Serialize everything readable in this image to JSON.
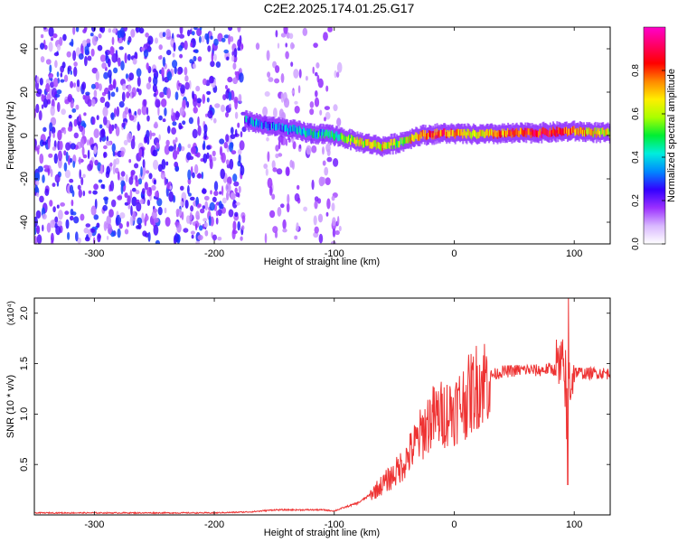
{
  "figure": {
    "title": "C2E2.2025.174.01.25.G17"
  },
  "chart_data": [
    {
      "type": "heatmap",
      "xlabel": "Height of straight line (km)",
      "ylabel": "Frequency (Hz)",
      "xlim": [
        -350,
        130
      ],
      "ylim": [
        -50,
        50
      ],
      "xticks": [
        -300,
        -200,
        -100,
        0,
        100
      ],
      "yticks": [
        -40,
        -20,
        0,
        20,
        40
      ],
      "colorbar": {
        "label": "Normalized spectral amplitude",
        "range": [
          0.0,
          1.0
        ],
        "ticks": [
          0.0,
          0.2,
          0.4,
          0.6,
          0.8
        ],
        "tick_labels": [
          "0.0",
          "0.2",
          "0.4",
          "0.6",
          "0.8"
        ],
        "colors": [
          "#ffffff",
          "#d9b8ff",
          "#9b30ff",
          "#3300ff",
          "#0088ff",
          "#00eedd",
          "#00ee33",
          "#aaff00",
          "#ffee00",
          "#ff8800",
          "#ff0000",
          "#ff0066",
          "#ff00cc"
        ]
      },
      "signal_track": [
        {
          "x": -175,
          "freq": 7,
          "amp": 0.35
        },
        {
          "x": -160,
          "freq": 5,
          "amp": 0.3
        },
        {
          "x": -140,
          "freq": 3,
          "amp": 0.35
        },
        {
          "x": -120,
          "freq": 1,
          "amp": 0.4
        },
        {
          "x": -100,
          "freq": 0,
          "amp": 0.45
        },
        {
          "x": -80,
          "freq": -3,
          "amp": 0.6
        },
        {
          "x": -60,
          "freq": -5,
          "amp": 0.65
        },
        {
          "x": -45,
          "freq": -3,
          "amp": 0.55
        },
        {
          "x": -30,
          "freq": 0,
          "amp": 0.75
        },
        {
          "x": -10,
          "freq": 1,
          "amp": 0.8
        },
        {
          "x": 20,
          "freq": 0.5,
          "amp": 0.65
        },
        {
          "x": 50,
          "freq": 1,
          "amp": 0.8
        },
        {
          "x": 80,
          "freq": 1.5,
          "amp": 0.85
        },
        {
          "x": 100,
          "freq": 2,
          "amp": 0.75
        },
        {
          "x": 130,
          "freq": 1,
          "amp": 0.6
        }
      ],
      "noise_region": {
        "x_from": -350,
        "x_to": -95,
        "amp": 0.25
      }
    },
    {
      "type": "line",
      "xlabel": "Height of straight line (km)",
      "ylabel": "SNR (10 * v/v)",
      "y_multiplier": "(x10⁴)",
      "xlim": [
        -350,
        130
      ],
      "ylim": [
        0,
        2.15
      ],
      "xticks": [
        -300,
        -200,
        -100,
        0,
        100
      ],
      "yticks": [
        0.5,
        1.0,
        1.5,
        2.0
      ],
      "ytick_labels": [
        "0.5",
        "1.0",
        "1.5",
        "2.0"
      ],
      "series": [
        {
          "color": "#ee3333",
          "x": [
            -350,
            -300,
            -250,
            -200,
            -170,
            -150,
            -130,
            -110,
            -100,
            -90,
            -80,
            -70,
            -60,
            -50,
            -40,
            -30,
            -20,
            -10,
            0,
            10,
            20,
            30,
            40,
            50,
            60,
            70,
            80,
            90,
            95,
            100,
            110,
            120,
            130
          ],
          "values": [
            0.02,
            0.02,
            0.02,
            0.02,
            0.03,
            0.05,
            0.05,
            0.05,
            0.04,
            0.08,
            0.12,
            0.2,
            0.3,
            0.4,
            0.55,
            0.75,
            0.95,
            1.0,
            1.05,
            1.15,
            1.3,
            1.38,
            1.42,
            1.43,
            1.44,
            1.43,
            1.45,
            1.42,
            1.3,
            1.42,
            1.4,
            1.41,
            1.4
          ]
        }
      ]
    }
  ]
}
